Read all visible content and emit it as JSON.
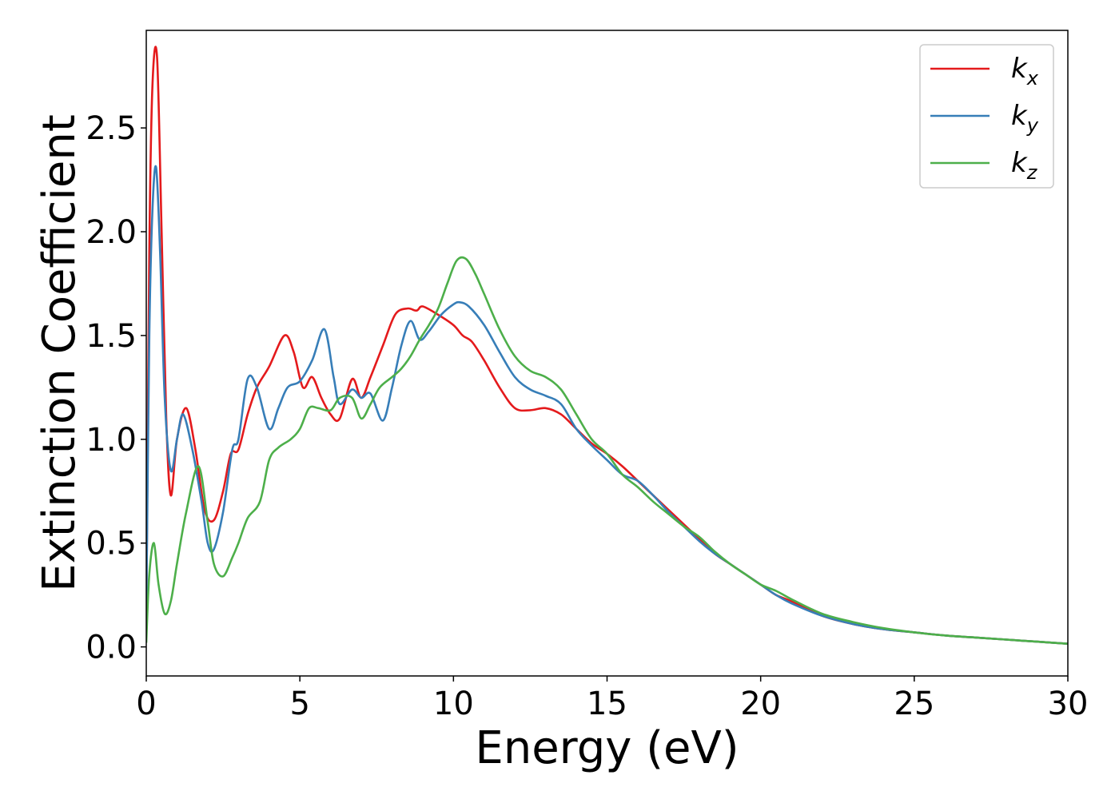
{
  "chart_data": {
    "type": "line",
    "title": "",
    "xlabel": "Energy (eV)",
    "ylabel": "Extinction Coefficient",
    "xlim": [
      0,
      30
    ],
    "ylim": [
      -0.14,
      2.97
    ],
    "xticks": [
      0,
      5,
      10,
      15,
      20,
      25,
      30
    ],
    "xtick_labels": [
      "0",
      "5",
      "10",
      "15",
      "20",
      "25",
      "30"
    ],
    "yticks": [
      0.0,
      0.5,
      1.0,
      1.5,
      2.0,
      2.5
    ],
    "ytick_labels": [
      "0.0",
      "0.5",
      "1.0",
      "1.5",
      "2.0",
      "2.5"
    ],
    "grid": false,
    "legend_position": "top-right",
    "series": [
      {
        "name": "k_x",
        "legend_base": "k",
        "legend_sub": "x",
        "color": "#e41a1c",
        "x": [
          0,
          0.1,
          0.2,
          0.35,
          0.5,
          0.65,
          0.8,
          1.0,
          1.3,
          1.6,
          1.9,
          2.2,
          2.5,
          2.75,
          3.0,
          3.3,
          3.6,
          4.0,
          4.5,
          4.8,
          5.1,
          5.4,
          5.7,
          6.0,
          6.3,
          6.7,
          7.0,
          7.3,
          7.7,
          8.1,
          8.5,
          8.8,
          9.0,
          9.5,
          10.0,
          10.3,
          10.6,
          11.0,
          11.5,
          12.0,
          12.5,
          13.0,
          13.5,
          14.0,
          14.5,
          15.0,
          15.5,
          16.0,
          16.5,
          17.0,
          17.5,
          18.0,
          18.5,
          19.0,
          19.5,
          20.0,
          20.5,
          21.0,
          22.0,
          23.0,
          24.0,
          25.0,
          26.0,
          27.0,
          28.0,
          29.0,
          30.0
        ],
        "y": [
          0.1,
          1.9,
          2.7,
          2.84,
          2.0,
          1.1,
          0.73,
          1.0,
          1.15,
          0.95,
          0.66,
          0.61,
          0.75,
          0.93,
          0.95,
          1.12,
          1.25,
          1.35,
          1.5,
          1.42,
          1.25,
          1.3,
          1.2,
          1.12,
          1.1,
          1.29,
          1.2,
          1.3,
          1.45,
          1.6,
          1.63,
          1.62,
          1.64,
          1.6,
          1.55,
          1.5,
          1.47,
          1.38,
          1.25,
          1.15,
          1.14,
          1.15,
          1.12,
          1.05,
          0.98,
          0.93,
          0.87,
          0.8,
          0.73,
          0.66,
          0.59,
          0.52,
          0.45,
          0.4,
          0.35,
          0.3,
          0.25,
          0.22,
          0.15,
          0.11,
          0.085,
          0.07,
          0.055,
          0.045,
          0.035,
          0.025,
          0.015
        ]
      },
      {
        "name": "k_y",
        "legend_base": "k",
        "legend_sub": "y",
        "color": "#377eb8",
        "x": [
          0,
          0.1,
          0.2,
          0.32,
          0.45,
          0.6,
          0.8,
          1.0,
          1.2,
          1.5,
          1.8,
          2.0,
          2.2,
          2.5,
          2.8,
          3.0,
          3.3,
          3.6,
          4.0,
          4.3,
          4.6,
          5.0,
          5.4,
          5.8,
          6.1,
          6.3,
          6.7,
          7.0,
          7.3,
          7.7,
          8.0,
          8.3,
          8.6,
          8.9,
          9.2,
          9.6,
          10.0,
          10.2,
          10.5,
          11.0,
          11.5,
          12.0,
          12.5,
          13.0,
          13.5,
          14.0,
          14.5,
          15.0,
          15.5,
          16.0,
          16.5,
          17.0,
          17.5,
          18.0,
          18.5,
          19.0,
          19.5,
          20.0,
          20.5,
          21.0,
          22.0,
          23.0,
          24.0,
          25.0,
          26.0,
          27.0,
          28.0,
          29.0,
          30.0
        ],
        "y": [
          0.15,
          1.5,
          2.1,
          2.31,
          1.9,
          1.2,
          0.85,
          1.0,
          1.12,
          0.95,
          0.7,
          0.5,
          0.47,
          0.65,
          0.95,
          1.0,
          1.29,
          1.25,
          1.05,
          1.15,
          1.25,
          1.28,
          1.38,
          1.53,
          1.3,
          1.17,
          1.24,
          1.2,
          1.22,
          1.09,
          1.25,
          1.45,
          1.57,
          1.48,
          1.52,
          1.6,
          1.65,
          1.66,
          1.64,
          1.55,
          1.42,
          1.3,
          1.24,
          1.21,
          1.17,
          1.05,
          0.97,
          0.9,
          0.83,
          0.8,
          0.73,
          0.65,
          0.58,
          0.51,
          0.45,
          0.4,
          0.35,
          0.3,
          0.25,
          0.21,
          0.15,
          0.11,
          0.085,
          0.07,
          0.055,
          0.045,
          0.035,
          0.025,
          0.015
        ]
      },
      {
        "name": "k_z",
        "legend_base": "k",
        "legend_sub": "z",
        "color": "#4daf4a",
        "x": [
          0,
          0.1,
          0.25,
          0.4,
          0.6,
          0.8,
          1.0,
          1.3,
          1.7,
          2.0,
          2.2,
          2.5,
          2.8,
          3.0,
          3.3,
          3.7,
          4.0,
          4.3,
          4.7,
          5.0,
          5.3,
          5.6,
          6.0,
          6.3,
          6.7,
          7.0,
          7.3,
          7.6,
          8.0,
          8.3,
          8.6,
          8.9,
          9.2,
          9.5,
          9.8,
          10.1,
          10.4,
          10.7,
          11.0,
          11.5,
          12.0,
          12.5,
          13.0,
          13.5,
          14.0,
          14.5,
          15.0,
          15.5,
          16.0,
          16.5,
          17.0,
          17.5,
          18.0,
          18.5,
          19.0,
          19.5,
          20.0,
          20.5,
          21.0,
          22.0,
          23.0,
          24.0,
          25.0,
          26.0,
          27.0,
          28.0,
          29.0,
          30.0
        ],
        "y": [
          0.02,
          0.35,
          0.5,
          0.3,
          0.16,
          0.22,
          0.4,
          0.65,
          0.87,
          0.6,
          0.4,
          0.34,
          0.43,
          0.5,
          0.62,
          0.7,
          0.9,
          0.96,
          1.0,
          1.05,
          1.15,
          1.15,
          1.14,
          1.2,
          1.2,
          1.1,
          1.17,
          1.25,
          1.3,
          1.34,
          1.4,
          1.48,
          1.55,
          1.63,
          1.75,
          1.86,
          1.87,
          1.8,
          1.7,
          1.53,
          1.4,
          1.33,
          1.3,
          1.24,
          1.12,
          1.0,
          0.93,
          0.83,
          0.77,
          0.7,
          0.64,
          0.58,
          0.53,
          0.46,
          0.4,
          0.35,
          0.3,
          0.27,
          0.23,
          0.16,
          0.12,
          0.09,
          0.07,
          0.055,
          0.045,
          0.035,
          0.025,
          0.015
        ]
      }
    ]
  }
}
